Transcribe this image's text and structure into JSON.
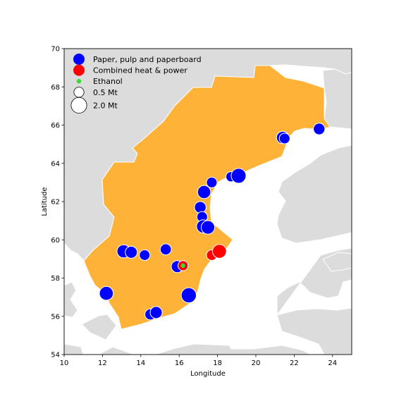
{
  "chart_data": {
    "type": "scatter",
    "xlabel": "Longitude",
    "ylabel": "Latitude",
    "xlim": [
      10,
      25
    ],
    "ylim": [
      54,
      70
    ],
    "x_ticks": [
      "10",
      "12",
      "14",
      "16",
      "18",
      "20",
      "22",
      "24"
    ],
    "y_ticks": [
      "54",
      "56",
      "58",
      "60",
      "62",
      "64",
      "66",
      "68",
      "70"
    ],
    "map": {
      "land_color": "#dcdcdc",
      "sea_color": "#ffffff",
      "highlight_country_color": "#ffb238",
      "border_color": "#ffffff"
    },
    "legend": {
      "placement": "top-left",
      "entries": [
        {
          "label": "Paper, pulp and paperboard",
          "color": "#0000ff",
          "kind": "category"
        },
        {
          "label": "Combined heat & power",
          "color": "#ff0000",
          "kind": "category"
        },
        {
          "label": "Ethanol",
          "color": "#33dd33",
          "kind": "category"
        },
        {
          "label": "0.5 Mt",
          "kind": "size",
          "mt": 0.5
        },
        {
          "label": "2.0 Mt",
          "kind": "size",
          "mt": 2.0
        }
      ]
    },
    "series": [
      {
        "name": "Paper, pulp and paperboard",
        "color": "#0000ff",
        "points": [
          {
            "lon": 12.2,
            "lat": 57.2,
            "mt": 1.4
          },
          {
            "lon": 13.1,
            "lat": 59.4,
            "mt": 1.2
          },
          {
            "lon": 13.5,
            "lat": 59.35,
            "mt": 0.9
          },
          {
            "lon": 14.2,
            "lat": 59.2,
            "mt": 0.6
          },
          {
            "lon": 14.5,
            "lat": 56.1,
            "mt": 0.7
          },
          {
            "lon": 14.8,
            "lat": 56.2,
            "mt": 0.9
          },
          {
            "lon": 15.3,
            "lat": 59.5,
            "mt": 0.7
          },
          {
            "lon": 15.9,
            "lat": 58.6,
            "mt": 0.9
          },
          {
            "lon": 16.5,
            "lat": 57.1,
            "mt": 1.8
          },
          {
            "lon": 17.1,
            "lat": 61.7,
            "mt": 0.8
          },
          {
            "lon": 17.2,
            "lat": 61.2,
            "mt": 0.6
          },
          {
            "lon": 17.25,
            "lat": 60.7,
            "mt": 1.2
          },
          {
            "lon": 17.5,
            "lat": 60.65,
            "mt": 1.3
          },
          {
            "lon": 17.3,
            "lat": 62.5,
            "mt": 1.2
          },
          {
            "lon": 17.7,
            "lat": 63.0,
            "mt": 0.6
          },
          {
            "lon": 18.7,
            "lat": 63.3,
            "mt": 0.5
          },
          {
            "lon": 19.1,
            "lat": 63.35,
            "mt": 1.7
          },
          {
            "lon": 21.4,
            "lat": 65.35,
            "mt": 1.0
          },
          {
            "lon": 21.5,
            "lat": 65.3,
            "mt": 0.6
          },
          {
            "lon": 23.3,
            "lat": 65.8,
            "mt": 0.8
          }
        ]
      },
      {
        "name": "Combined heat & power",
        "color": "#ff0000",
        "points": [
          {
            "lon": 17.7,
            "lat": 59.2,
            "mt": 0.6
          },
          {
            "lon": 18.1,
            "lat": 59.4,
            "mt": 1.4
          },
          {
            "lon": 16.2,
            "lat": 58.65,
            "mt": 0.5
          }
        ]
      },
      {
        "name": "Ethanol",
        "color": "#33dd33",
        "points": [
          {
            "lon": 16.2,
            "lat": 58.65,
            "mt": 0.05
          }
        ]
      }
    ]
  }
}
